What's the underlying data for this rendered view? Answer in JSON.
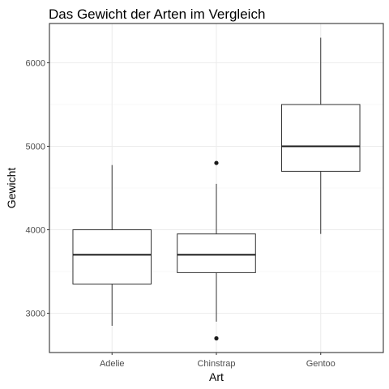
{
  "chart_data": {
    "type": "boxplot",
    "title": "Das Gewicht der Arten im Vergleich",
    "xlabel": "Art",
    "ylabel": "Gewicht",
    "categories": [
      "Adelie",
      "Chinstrap",
      "Gentoo"
    ],
    "ylim": [
      2530,
      6470
    ],
    "yticks": [
      3000,
      4000,
      5000,
      6000
    ],
    "grid": true,
    "boxes": [
      {
        "category": "Adelie",
        "min": 2850,
        "q1": 3350,
        "median": 3700,
        "q3": 4000,
        "max": 4775,
        "outliers": []
      },
      {
        "category": "Chinstrap",
        "min": 2900,
        "q1": 3487,
        "median": 3700,
        "q3": 3950,
        "max": 4550,
        "outliers": [
          4800,
          2700
        ]
      },
      {
        "category": "Gentoo",
        "min": 3950,
        "q1": 4700,
        "median": 5000,
        "q3": 5500,
        "max": 6300,
        "outliers": []
      }
    ]
  }
}
